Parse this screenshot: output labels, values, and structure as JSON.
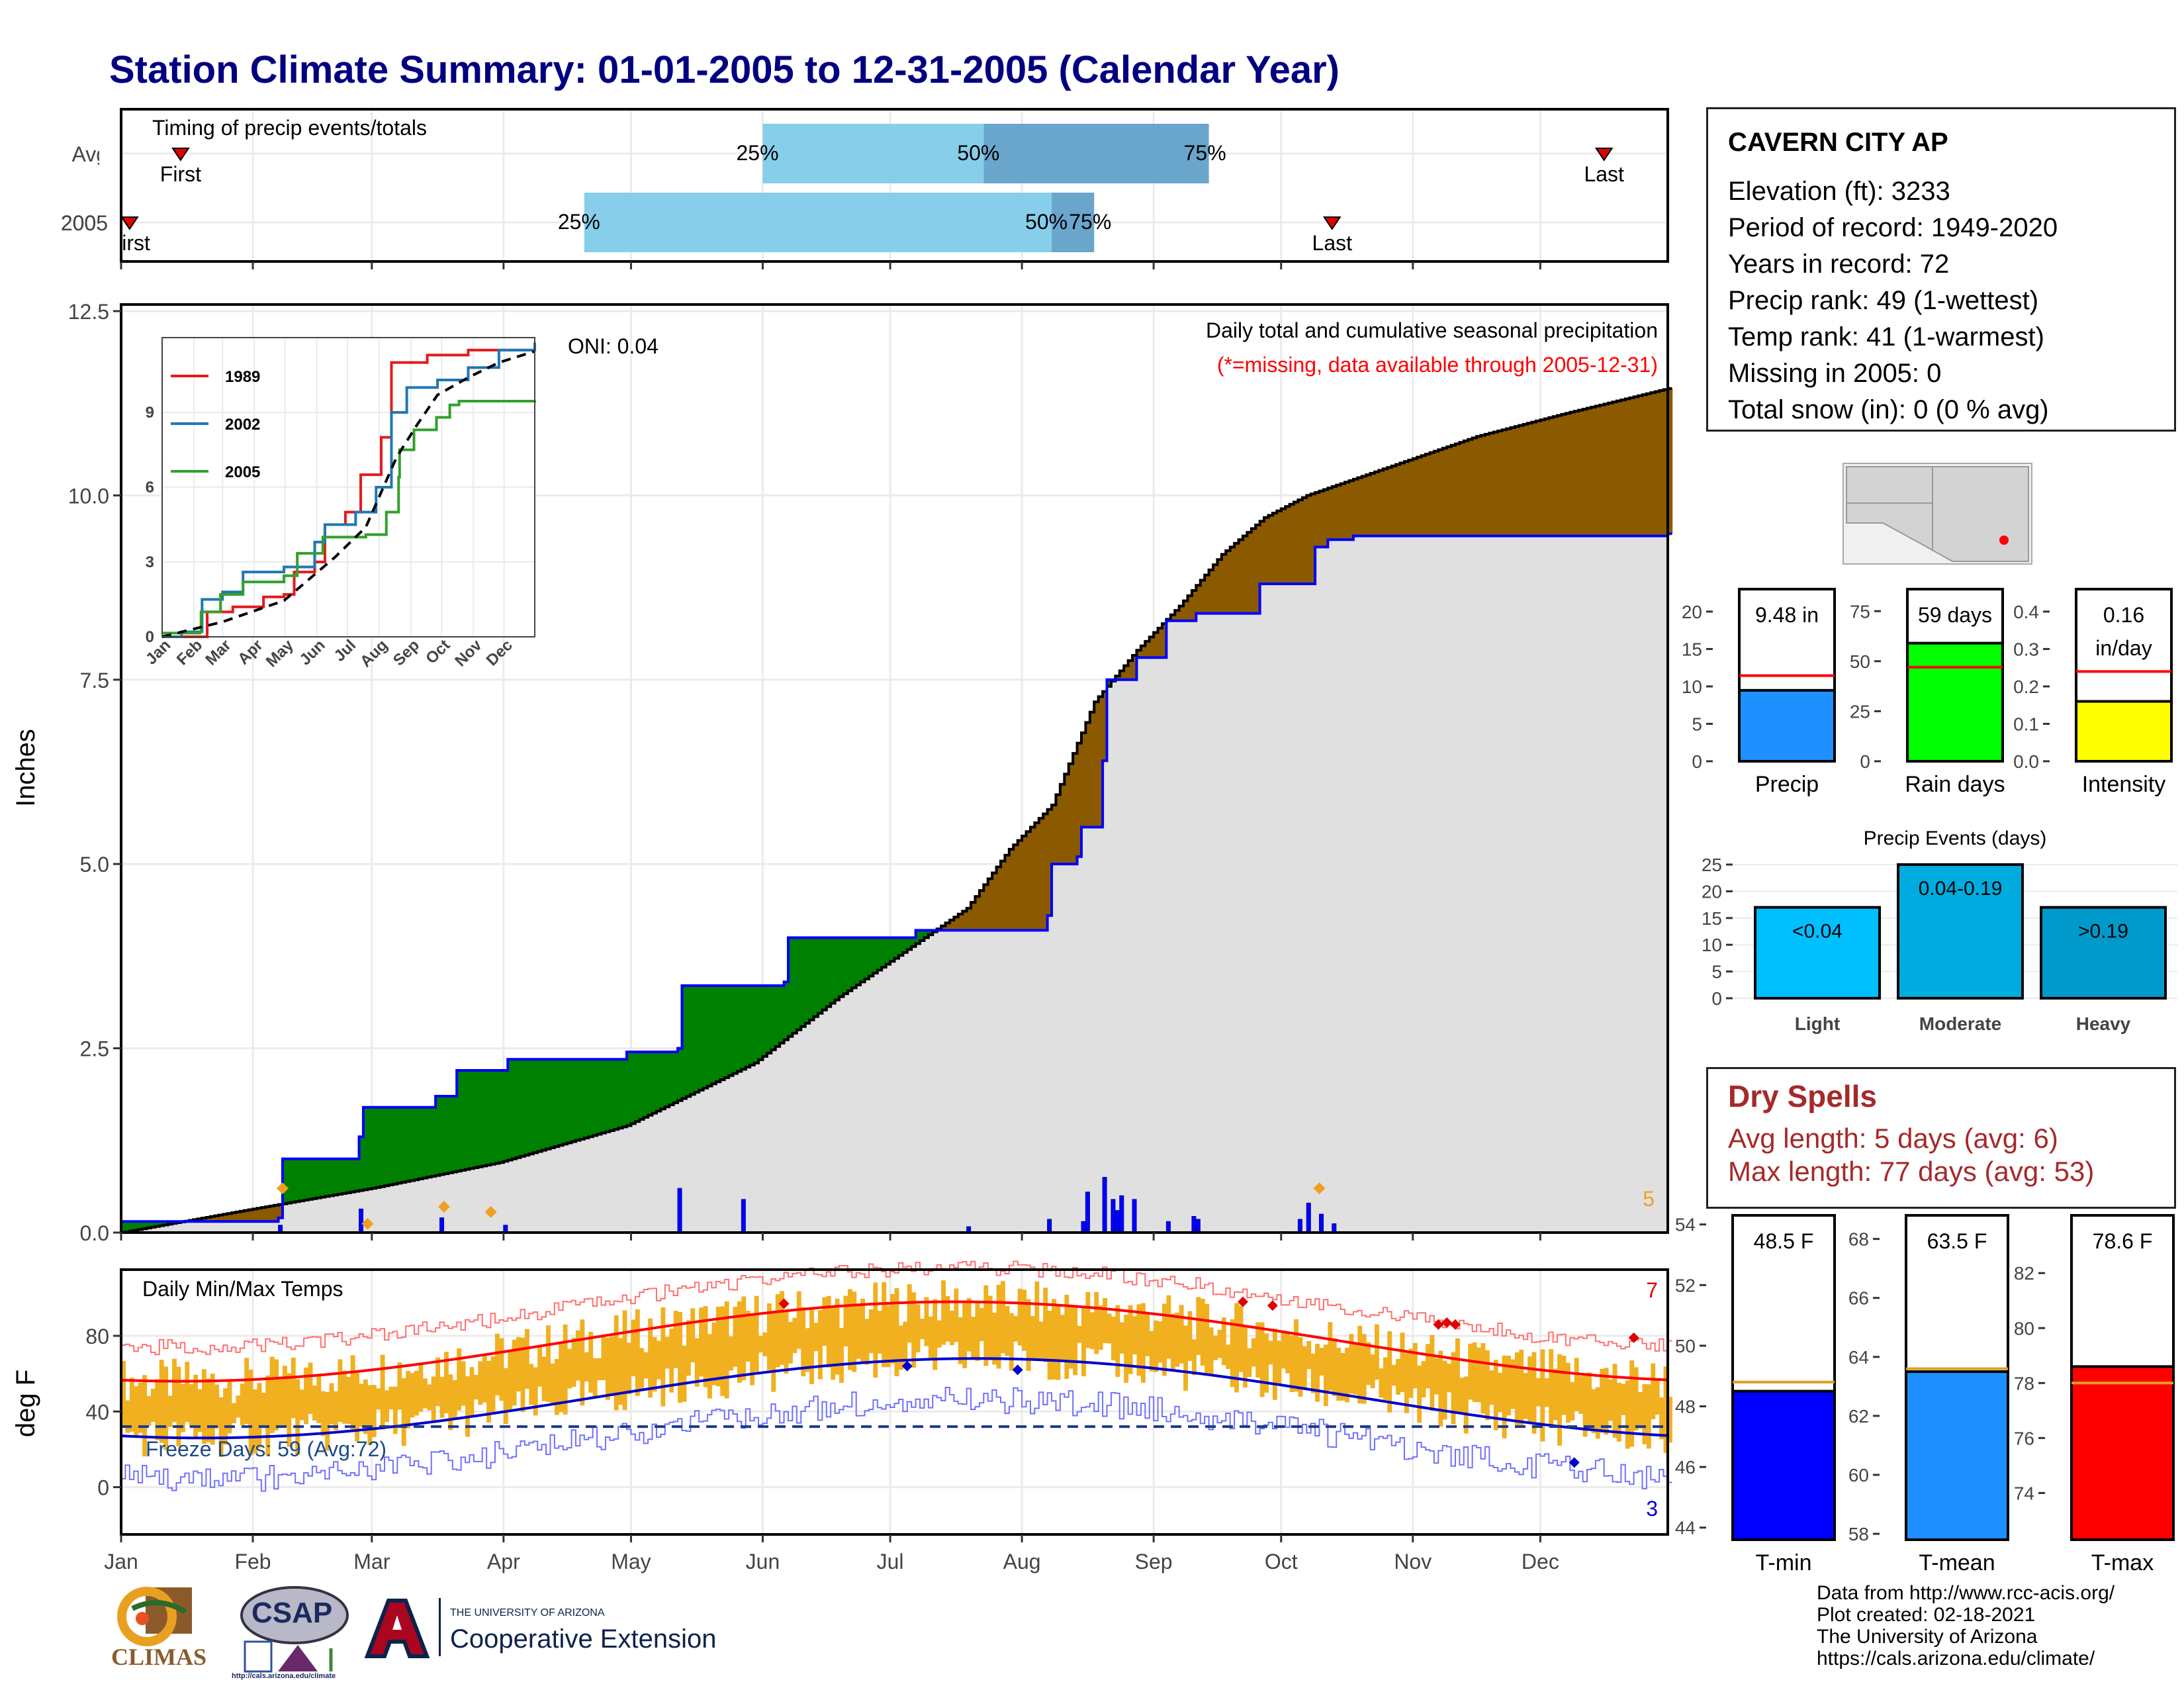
{
  "title": "Station Climate Summary: 01-01-2005 to 12-31-2005 (Calendar Year)",
  "station": {
    "name": "CAVERN CITY AP",
    "lines": [
      "Elevation (ft): 3233",
      "Period of record: 1949-2020",
      "Years in record: 72",
      "Precip rank: 49 (1-wettest)",
      "Temp rank: 41 (1-warmest)",
      "Missing in 2005: 0",
      "Total snow (in): 0 (0 % avg)"
    ]
  },
  "dry_spells": {
    "title": "Dry Spells",
    "avg": "Avg length: 5 days (avg: 6)",
    "max": "Max length: 77 days (avg: 53)"
  },
  "credits": [
    "Data from http://www.rcc-acis.org/",
    "Plot created: 02-18-2021",
    "The University of Arizona",
    "https://cals.arizona.edu/climate/"
  ],
  "logos": {
    "climas": "CLIMAS",
    "csap": "CSAP",
    "csap_url": "http://cals.arizona.edu/climate",
    "ua_line1": "THE UNIVERSITY OF ARIZONA",
    "ua_line2": "Cooperative Extension"
  },
  "colors": {
    "navy_title": "#000080",
    "light_blue": "#87ceeb",
    "mid_blue": "#6aa5cc",
    "green": "#008000",
    "brown": "#8b5a00",
    "gray_fill": "#e0e0e0",
    "blue": "#0000ff",
    "orange": "#f0b020",
    "red": "#ff0000",
    "dry_red": "#a52a2a"
  },
  "chart_data": [
    {
      "name": "timing",
      "type": "bar",
      "title": "Timing of precip events/totals",
      "rows": [
        {
          "label": "Avg",
          "first_doy": 15,
          "q25_doy": 152,
          "q50_doy": 204,
          "q75_doy": 257,
          "last_doy": 350,
          "q25_label": "25%",
          "q50_label": "50%",
          "q75_label": "75%",
          "first_label": "First",
          "last_label": "Last"
        },
        {
          "label": "2005",
          "first_doy": 3,
          "q25_doy": 110,
          "q50_doy": 220,
          "q75_doy": 230,
          "last_doy": 286,
          "q25_label": "25%",
          "q50_label": "50%",
          "q75_label": "75%",
          "first_label": "First",
          "last_label": "Last"
        }
      ]
    },
    {
      "name": "precip",
      "type": "area",
      "title": "Daily total and cumulative seasonal precipitation",
      "subtitle": "(*=missing, data available through 2005-12-31)",
      "annotation_oni": "ONI: 0.04",
      "corner_count": "5",
      "ylabel": "Inches",
      "ylim": [
        0,
        12.5
      ],
      "yticks": [
        "0.0",
        "2.5",
        "5.0",
        "7.5",
        "10.0",
        "12.5"
      ],
      "avg_cumulative": [
        [
          1,
          0
        ],
        [
          30,
          0.3
        ],
        [
          60,
          0.6
        ],
        [
          90,
          0.95
        ],
        [
          120,
          1.45
        ],
        [
          150,
          2.3
        ],
        [
          170,
          3.2
        ],
        [
          190,
          4.0
        ],
        [
          200,
          4.4
        ],
        [
          210,
          5.2
        ],
        [
          220,
          5.8
        ],
        [
          230,
          7.2
        ],
        [
          240,
          7.9
        ],
        [
          250,
          8.5
        ],
        [
          260,
          9.2
        ],
        [
          270,
          9.7
        ],
        [
          280,
          10.0
        ],
        [
          300,
          10.4
        ],
        [
          320,
          10.8
        ],
        [
          340,
          11.1
        ],
        [
          365,
          11.45
        ]
      ],
      "cumulative_2005": [
        [
          1,
          0.15
        ],
        [
          38,
          0.2
        ],
        [
          39,
          1.0
        ],
        [
          57,
          1.3
        ],
        [
          58,
          1.7
        ],
        [
          75,
          1.85
        ],
        [
          80,
          2.2
        ],
        [
          92,
          2.35
        ],
        [
          120,
          2.45
        ],
        [
          132,
          2.5
        ],
        [
          133,
          3.35
        ],
        [
          157,
          3.4
        ],
        [
          158,
          4.0
        ],
        [
          188,
          4.1
        ],
        [
          200,
          4.1
        ],
        [
          219,
          4.3
        ],
        [
          220,
          5.0
        ],
        [
          226,
          5.1
        ],
        [
          227,
          5.5
        ],
        [
          232,
          6.4
        ],
        [
          233,
          7.5
        ],
        [
          240,
          7.8
        ],
        [
          247,
          8.3
        ],
        [
          254,
          8.4
        ],
        [
          268,
          8.4
        ],
        [
          269,
          8.8
        ],
        [
          280,
          8.8
        ],
        [
          282,
          9.3
        ],
        [
          285,
          9.4
        ],
        [
          291,
          9.45
        ],
        [
          365,
          9.48
        ]
      ],
      "daily_spikes": [
        [
          38,
          0.1
        ],
        [
          57,
          0.32
        ],
        [
          76,
          0.2
        ],
        [
          91,
          0.1
        ],
        [
          132,
          0.6
        ],
        [
          147,
          0.45
        ],
        [
          200,
          0.08
        ],
        [
          219,
          0.18
        ],
        [
          227,
          0.15
        ],
        [
          228,
          0.55
        ],
        [
          232,
          0.75
        ],
        [
          234,
          0.45
        ],
        [
          235,
          0.3
        ],
        [
          236,
          0.5
        ],
        [
          239,
          0.45
        ],
        [
          247,
          0.15
        ],
        [
          253,
          0.22
        ],
        [
          254,
          0.18
        ],
        [
          278,
          0.18
        ],
        [
          280,
          0.4
        ],
        [
          283,
          0.25
        ],
        [
          286,
          0.12
        ]
      ],
      "missing_markers": [
        [
          39,
          0.6
        ],
        [
          59,
          0.12
        ],
        [
          77,
          0.35
        ],
        [
          88,
          0.28
        ],
        [
          283,
          0.6
        ]
      ]
    },
    {
      "name": "inset",
      "type": "line",
      "ylim": [
        0,
        12
      ],
      "yticks": [
        "0",
        "3",
        "6",
        "9"
      ],
      "months": [
        "Jan",
        "Feb",
        "Mar",
        "Apr",
        "May",
        "Jun",
        "Jul",
        "Aug",
        "Sep",
        "Oct",
        "Nov",
        "Dec"
      ],
      "series": [
        {
          "name": "1989",
          "color": "#e31a1c",
          "points": [
            [
              1,
              0
            ],
            [
              40,
              0
            ],
            [
              45,
              1.0
            ],
            [
              70,
              1.2
            ],
            [
              100,
              1.6
            ],
            [
              120,
              1.7
            ],
            [
              130,
              2.6
            ],
            [
              150,
              3.0
            ],
            [
              160,
              4.5
            ],
            [
              180,
              5.0
            ],
            [
              195,
              6.5
            ],
            [
              215,
              8.0
            ],
            [
              225,
              11.0
            ],
            [
              245,
              11.0
            ],
            [
              260,
              11.3
            ],
            [
              280,
              11.3
            ],
            [
              300,
              11.5
            ],
            [
              365,
              11.5
            ]
          ]
        },
        {
          "name": "2002",
          "color": "#1f78b4",
          "points": [
            [
              1,
              0
            ],
            [
              20,
              0.2
            ],
            [
              40,
              1.5
            ],
            [
              60,
              1.8
            ],
            [
              80,
              2.6
            ],
            [
              120,
              2.8
            ],
            [
              150,
              3.8
            ],
            [
              160,
              4.5
            ],
            [
              190,
              5.0
            ],
            [
              210,
              6.0
            ],
            [
              225,
              9.0
            ],
            [
              240,
              10.0
            ],
            [
              270,
              10.3
            ],
            [
              300,
              10.8
            ],
            [
              330,
              11.5
            ],
            [
              365,
              11.8
            ]
          ]
        },
        {
          "name": "2005",
          "color": "#33a02c",
          "points": [
            [
              1,
              0.15
            ],
            [
              38,
              0.2
            ],
            [
              39,
              1.0
            ],
            [
              58,
              1.7
            ],
            [
              80,
              2.2
            ],
            [
              120,
              2.45
            ],
            [
              133,
              3.35
            ],
            [
              158,
              4.0
            ],
            [
              200,
              4.1
            ],
            [
              220,
              5.0
            ],
            [
              232,
              6.4
            ],
            [
              233,
              7.5
            ],
            [
              247,
              8.3
            ],
            [
              269,
              8.8
            ],
            [
              282,
              9.3
            ],
            [
              291,
              9.45
            ],
            [
              365,
              9.48
            ]
          ]
        }
      ],
      "avg_points": [
        [
          1,
          0
        ],
        [
          60,
          0.6
        ],
        [
          120,
          1.45
        ],
        [
          170,
          3.2
        ],
        [
          200,
          4.4
        ],
        [
          230,
          7.2
        ],
        [
          250,
          8.5
        ],
        [
          270,
          9.7
        ],
        [
          300,
          10.4
        ],
        [
          330,
          11.0
        ],
        [
          365,
          11.45
        ]
      ]
    },
    {
      "name": "bar_precip",
      "type": "bar",
      "label": "Precip",
      "value": 9.48,
      "value_label": "9.48 in",
      "avg": 11.45,
      "ylim": [
        0,
        23
      ],
      "yticks": [
        0,
        5,
        10,
        15,
        20
      ],
      "color": "#1e90ff"
    },
    {
      "name": "bar_raindays",
      "type": "bar",
      "label": "Rain days",
      "value": 59,
      "value_label": "59 days",
      "avg": 47,
      "ylim": [
        0,
        86
      ],
      "yticks": [
        0,
        25,
        50,
        75
      ],
      "color": "#00ff00"
    },
    {
      "name": "bar_intensity",
      "type": "bar",
      "label": "Intensity",
      "value": 0.16,
      "value_label": "0.16 in/day",
      "avg": 0.24,
      "ylim": [
        0,
        0.46
      ],
      "yticks": [
        "0.0",
        "0.1",
        "0.2",
        "0.3",
        "0.4"
      ],
      "color": "#ffff00"
    },
    {
      "name": "precip_events",
      "type": "bar",
      "title": "Precip Events (days)",
      "categories": [
        "Light",
        "Moderate",
        "Heavy"
      ],
      "labels": [
        "<0.04",
        "0.04-0.19",
        ">0.19"
      ],
      "values": [
        17,
        25,
        17
      ],
      "ylim": [
        0,
        26
      ],
      "yticks": [
        0,
        5,
        10,
        15,
        20,
        25
      ],
      "colors": [
        "#00bfff",
        "#00acdf",
        "#0099cc"
      ]
    },
    {
      "name": "temps",
      "type": "line",
      "title": "Daily Min/Max Temps",
      "ylabel": "deg F",
      "ylim": [
        -25,
        115
      ],
      "yticks": [
        "0",
        "40",
        "80"
      ],
      "freeze_label": "Freeze Days: 59 (Avg:72)",
      "freeze_line": 32,
      "count_high": "7",
      "count_low": "3",
      "months": [
        "Jan",
        "Feb",
        "Mar",
        "Apr",
        "May",
        "Jun",
        "Jul",
        "Aug",
        "Sep",
        "Oct",
        "Nov",
        "Dec"
      ]
    },
    {
      "name": "bar_tmin",
      "type": "bar",
      "label": "T-min",
      "value": 48.5,
      "value_label": "48.5 F",
      "avg": 48.8,
      "ylim": [
        43.6,
        54.3
      ],
      "yticks": [
        44,
        46,
        48,
        50,
        52,
        54
      ],
      "color": "#0000ff"
    },
    {
      "name": "bar_tmean",
      "type": "bar",
      "label": "T-mean",
      "value": 63.5,
      "value_label": "63.5 F",
      "avg": 63.6,
      "ylim": [
        57.8,
        68.8
      ],
      "yticks": [
        58,
        60,
        62,
        64,
        66,
        68
      ],
      "color": "#1e90ff"
    },
    {
      "name": "bar_tmax",
      "type": "bar",
      "label": "T-max",
      "value": 78.6,
      "value_label": "78.6 F",
      "avg": 78.0,
      "ylim": [
        72.3,
        84.1
      ],
      "yticks": [
        74,
        76,
        78,
        80,
        82
      ],
      "color": "#ff0000"
    }
  ]
}
